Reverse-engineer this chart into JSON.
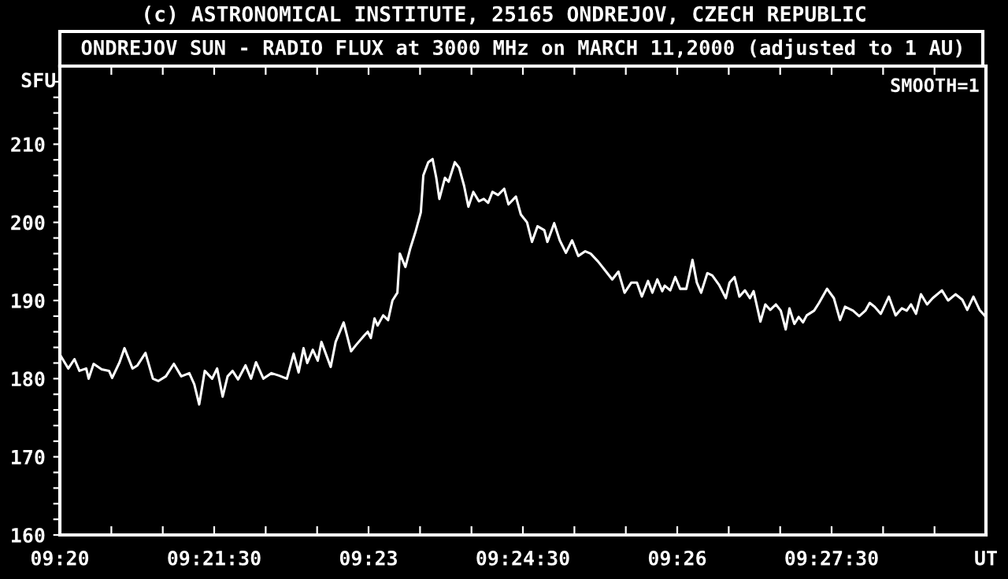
{
  "chart_data": {
    "type": "line",
    "title": "(c) ASTRONOMICAL INSTITUTE, 25165 ONDREJOV, CZECH REPUBLIC",
    "subtitle": "ONDREJOV SUN - RADIO FLUX at 3000 MHz on MARCH 11,2000 (adjusted to 1 AU)",
    "ylabel": "SFU",
    "annotations": [
      "SMOOTH=1"
    ],
    "xlim": [
      9.33333,
      9.48333
    ],
    "xticks": [
      {
        "value": 9.33333,
        "label": "09:20"
      },
      {
        "value": 9.34167,
        "label": null
      },
      {
        "value": 9.35,
        "label": null
      },
      {
        "value": 9.35833,
        "label": "09:21:30"
      },
      {
        "value": 9.36667,
        "label": null
      },
      {
        "value": 9.375,
        "label": null
      },
      {
        "value": 9.38333,
        "label": "09:23"
      },
      {
        "value": 9.39167,
        "label": null
      },
      {
        "value": 9.4,
        "label": null
      },
      {
        "value": 9.40833,
        "label": "09:24:30"
      },
      {
        "value": 9.41667,
        "label": null
      },
      {
        "value": 9.425,
        "label": null
      },
      {
        "value": 9.43333,
        "label": "09:26"
      },
      {
        "value": 9.44167,
        "label": null
      },
      {
        "value": 9.45,
        "label": null
      },
      {
        "value": 9.45833,
        "label": "09:27:30"
      },
      {
        "value": 9.46667,
        "label": null
      },
      {
        "value": 9.475,
        "label": null
      },
      {
        "value": 9.48333,
        "label": "UT"
      }
    ],
    "ylim": [
      160,
      220
    ],
    "yticks": [
      160,
      {
        "value": 162,
        "label": null
      },
      {
        "value": 164,
        "label": null
      },
      {
        "value": 166,
        "label": null
      },
      {
        "value": 168,
        "label": null
      },
      170,
      {
        "value": 172,
        "label": null
      },
      {
        "value": 174,
        "label": null
      },
      {
        "value": 176,
        "label": null
      },
      {
        "value": 178,
        "label": null
      },
      180,
      {
        "value": 182,
        "label": null
      },
      {
        "value": 184,
        "label": null
      },
      {
        "value": 186,
        "label": null
      },
      {
        "value": 188,
        "label": null
      },
      190,
      {
        "value": 192,
        "label": null
      },
      {
        "value": 194,
        "label": null
      },
      {
        "value": 196,
        "label": null
      },
      {
        "value": 198,
        "label": null
      },
      200,
      {
        "value": 202,
        "label": null
      },
      {
        "value": 204,
        "label": null
      },
      {
        "value": 206,
        "label": null
      },
      {
        "value": 208,
        "label": null
      },
      210,
      {
        "value": 212,
        "label": null
      },
      {
        "value": 214,
        "label": null
      },
      {
        "value": 216,
        "label": null
      },
      {
        "value": 218,
        "label": null
      }
    ],
    "grid": false,
    "legend": false,
    "line_style": "solid",
    "series": [
      {
        "color": "#ffffff",
        "x": [
          9.3334,
          9.3347,
          9.3357,
          9.3365,
          9.3376,
          9.338,
          9.3388,
          9.3401,
          9.3413,
          9.3418,
          9.343,
          9.3438,
          9.3451,
          9.3459,
          9.3472,
          9.3484,
          9.3493,
          9.3505,
          9.3518,
          9.353,
          9.3543,
          9.3551,
          9.3559,
          9.3568,
          9.358,
          9.3588,
          9.3597,
          9.3605,
          9.3613,
          9.3622,
          9.3634,
          9.3643,
          9.3651,
          9.3663,
          9.3676,
          9.3688,
          9.3701,
          9.3712,
          9.372,
          9.3728,
          9.3734,
          9.3743,
          9.3751,
          9.3757,
          9.3772,
          9.378,
          9.3793,
          9.3805,
          9.3813,
          9.3826,
          9.3832,
          9.3837,
          9.3843,
          9.3848,
          9.3857,
          9.3865,
          9.3872,
          9.388,
          9.3884,
          9.3893,
          9.3901,
          9.3909,
          9.3918,
          9.3922,
          9.393,
          9.3937,
          9.3943,
          9.3948,
          9.3957,
          9.3963,
          9.3973,
          9.398,
          9.3988,
          9.3995,
          9.4003,
          9.4012,
          9.402,
          9.4027,
          9.4034,
          9.4043,
          9.4053,
          9.406,
          9.4072,
          9.408,
          9.409,
          9.4098,
          9.4107,
          9.4118,
          9.4123,
          9.4134,
          9.4143,
          9.4153,
          9.4163,
          9.4173,
          9.4184,
          9.4193,
          9.4205,
          9.4218,
          9.4228,
          9.4238,
          9.4248,
          9.4259,
          9.4268,
          9.4276,
          9.4286,
          9.4293,
          9.4301,
          9.4309,
          9.4313,
          9.4322,
          9.433,
          9.4338,
          9.4348,
          9.4358,
          9.4365,
          9.4372,
          9.4382,
          9.439,
          9.4401,
          9.4412,
          9.4418,
          9.4426,
          9.4434,
          9.4443,
          9.4451,
          9.4457,
          9.4468,
          9.4476,
          9.4484,
          9.4493,
          9.4501,
          9.4509,
          9.4515,
          9.4523,
          9.453,
          9.4537,
          9.4543,
          9.4555,
          9.4563,
          9.4576,
          9.4587,
          9.4597,
          9.4605,
          9.4618,
          9.4628,
          9.4638,
          9.4645,
          9.4653,
          9.4663,
          9.4676,
          9.4687,
          9.4697,
          9.4705,
          9.4712,
          9.472,
          9.4728,
          9.4738,
          9.4747,
          9.4762,
          9.4772,
          9.4784,
          9.4795,
          9.4803,
          9.4813,
          9.4823,
          9.4832
        ],
        "values": [
          183.0,
          181.3,
          182.5,
          181.0,
          181.3,
          180.0,
          181.9,
          181.2,
          181.0,
          180.1,
          182.1,
          183.9,
          181.3,
          181.7,
          183.3,
          180.0,
          179.7,
          180.3,
          181.9,
          180.3,
          180.7,
          179.3,
          176.7,
          181.0,
          180.0,
          181.3,
          177.7,
          180.3,
          181.0,
          179.9,
          181.7,
          180.0,
          182.1,
          180.0,
          180.7,
          180.4,
          180.0,
          183.2,
          180.8,
          183.9,
          182.0,
          183.7,
          182.3,
          184.7,
          181.5,
          184.7,
          187.2,
          183.5,
          184.3,
          185.5,
          186.0,
          185.2,
          187.7,
          186.8,
          188.1,
          187.5,
          190.0,
          191.0,
          196.0,
          194.3,
          196.7,
          198.7,
          201.3,
          206.0,
          207.7,
          208.1,
          205.7,
          203.0,
          205.7,
          205.2,
          207.7,
          207.0,
          204.7,
          202.0,
          203.9,
          202.7,
          203.0,
          202.5,
          203.9,
          203.5,
          204.3,
          202.3,
          203.3,
          201.0,
          200.0,
          197.5,
          199.5,
          199.0,
          197.5,
          199.9,
          197.7,
          196.1,
          197.7,
          195.7,
          196.3,
          196.0,
          195.0,
          193.7,
          192.7,
          193.7,
          191.0,
          192.3,
          192.3,
          190.5,
          192.5,
          191.0,
          192.7,
          191.2,
          191.9,
          191.3,
          193.0,
          191.5,
          191.5,
          195.2,
          192.3,
          191.0,
          193.5,
          193.2,
          192.0,
          190.3,
          192.3,
          193.0,
          190.5,
          191.3,
          190.3,
          191.2,
          187.3,
          189.5,
          188.8,
          189.5,
          188.7,
          186.3,
          189.0,
          187.0,
          187.9,
          187.2,
          188.1,
          188.7,
          189.7,
          191.5,
          190.3,
          187.5,
          189.2,
          188.7,
          188.0,
          188.7,
          189.7,
          189.2,
          188.3,
          190.5,
          188.1,
          189.0,
          188.7,
          189.5,
          188.3,
          190.8,
          189.5,
          190.3,
          191.3,
          190.0,
          190.8,
          190.1,
          188.8,
          190.5,
          188.8,
          188.0
        ]
      }
    ]
  }
}
